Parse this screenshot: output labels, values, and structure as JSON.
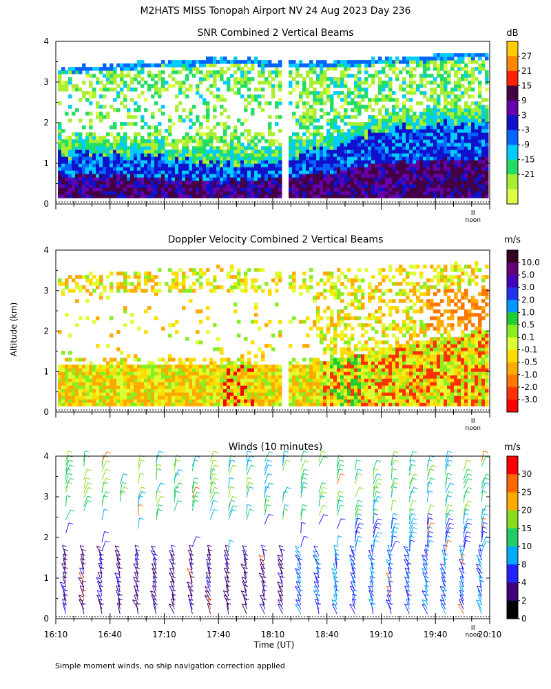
{
  "page_title": "M2HATS MISS Tonopah Airport NV  24 Aug 2023 Day 236",
  "footnote": "Simple moment winds, no ship navigation correction applied",
  "y_axis_label": "Altitude (km)",
  "x_axis_label": "Time (UT)",
  "noon_label": "noon",
  "noon_marker": "II",
  "chart_data": [
    {
      "type": "heatmap",
      "title": "SNR Combined 2 Vertical Beams",
      "xlabel": "",
      "ylabel": "Altitude (km)",
      "ylim": [
        0,
        4
      ],
      "yticks": [
        "0",
        "1",
        "2",
        "3",
        "4"
      ],
      "x_range_ut": [
        "16:10",
        "20:10"
      ],
      "noon_time": "20:00",
      "colorbar_unit": "dB",
      "colorbar_labels": [
        "27",
        "21",
        "15",
        "9",
        "3",
        "-3",
        "-9",
        "-15",
        "-21"
      ],
      "colorbar_colors": [
        "#ffcc00",
        "#ff8800",
        "#ff2200",
        "#440044",
        "#6600aa",
        "#1111cc",
        "#0066ff",
        "#00ccff",
        "#22dd66",
        "#aaee33",
        "#ddff44"
      ],
      "top_boundary_km": [
        3.3,
        3.35,
        3.4,
        3.45,
        3.5,
        3.55,
        3.5,
        3.45,
        3.45,
        3.5,
        3.55,
        3.6,
        3.65,
        3.7
      ],
      "strong_layer_top_km": [
        1.2,
        1.2,
        1.15,
        1.1,
        1.0,
        0.95,
        1.0,
        1.1,
        1.3,
        1.6,
        1.8,
        1.9,
        1.95,
        1.9
      ],
      "gridlines": false
    },
    {
      "type": "heatmap",
      "title": "Doppler Velocity Combined 2 Vertical Beams",
      "xlabel": "",
      "ylabel": "Altitude (km)",
      "ylim": [
        0,
        4
      ],
      "yticks": [
        "0",
        "1",
        "2",
        "3",
        "4"
      ],
      "x_range_ut": [
        "16:10",
        "20:10"
      ],
      "colorbar_unit": "m/s",
      "colorbar_labels": [
        "10.0",
        "5.0",
        "3.0",
        "2.0",
        "1.0",
        "0.5",
        "0.1",
        "-0.1",
        "-0.5",
        "-1.0",
        "-2.0",
        "-3.0"
      ],
      "colorbar_colors": [
        "#330022",
        "#660077",
        "#4400bb",
        "#2233ee",
        "#0099ff",
        "#22cc33",
        "#88ee22",
        "#ddff33",
        "#ffdd00",
        "#ffaa00",
        "#ff7700",
        "#ff3300",
        "#ff0000"
      ],
      "top_boundary_km": [
        3.3,
        3.35,
        3.4,
        3.45,
        3.5,
        3.55,
        3.5,
        3.45,
        3.45,
        3.5,
        3.55,
        3.6,
        3.65,
        3.7
      ],
      "gridlines": false
    },
    {
      "type": "scatter",
      "title": "Winds (10 minutes)",
      "xlabel": "Time (UT)",
      "ylabel": "Altitude (km)",
      "ylim": [
        0,
        4
      ],
      "yticks": [
        "0",
        "1",
        "2",
        "3",
        "4"
      ],
      "xticks": [
        "16:10",
        "16:40",
        "17:10",
        "17:40",
        "18:10",
        "18:40",
        "19:10",
        "19:40",
        "20:10"
      ],
      "x_range_ut": [
        "16:10",
        "20:10"
      ],
      "profile_interval_min": 10,
      "colorbar_unit": "m/s",
      "colorbar_labels": [
        "30",
        "25",
        "20",
        "15",
        "10",
        "8",
        "4",
        "2",
        "0"
      ],
      "colorbar_colors": [
        "#ff0000",
        "#ff6600",
        "#ffaa00",
        "#88dd22",
        "#22cc66",
        "#00aaff",
        "#2222ff",
        "#440077",
        "#000000"
      ],
      "legend": "right",
      "gridlines": false
    }
  ]
}
